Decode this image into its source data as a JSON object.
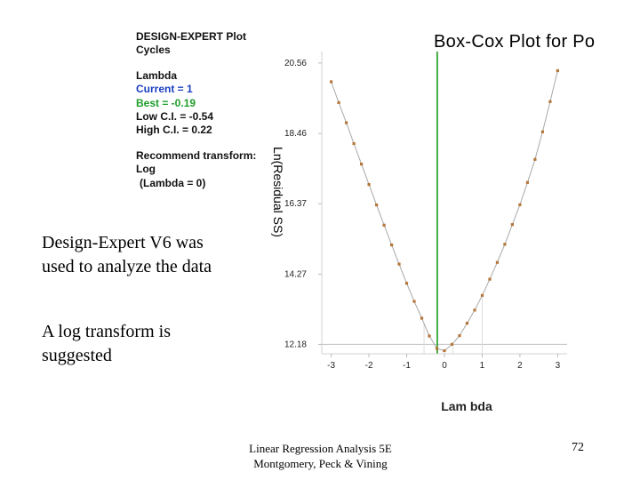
{
  "info_panel": {
    "line1": "DESIGN-EXPERT Plot",
    "line2": "Cycles",
    "lambda_heading": "Lambda",
    "current": "Current = 1",
    "best": "Best = -0.19",
    "low_ci": "Low C.I. = -0.54",
    "high_ci": "High C.I. = 0.22",
    "recommend_heading": "Recommend transform:",
    "recommend_value": "Log",
    "recommend_lambda": "(Lambda = 0)"
  },
  "slide_text": {
    "paragraph1": "Design-Expert V6 was used to analyze the data",
    "paragraph2": "A log transform is suggested"
  },
  "footer": {
    "line1": "Linear Regression Analysis 5E",
    "line2": "Montgomery, Peck & Vining",
    "page_number": "72"
  },
  "chart_data": {
    "type": "line",
    "title": "Box-Cox Plot for Po",
    "xlabel": "Lam bda",
    "ylabel": "Ln(Residual SS)",
    "xlim": [
      -3.25,
      3.25
    ],
    "ylim": [
      11.9,
      20.9
    ],
    "x_ticks": [
      -3,
      -2,
      -1,
      0,
      1,
      2,
      3
    ],
    "y_ticks": [
      12.18,
      14.27,
      16.37,
      18.46,
      20.56
    ],
    "y_tick_labels": [
      "12.18",
      "14.27",
      "16.37",
      "18.46",
      "20.56"
    ],
    "current_lambda": 1,
    "best_lambda": -0.19,
    "low_ci": -0.54,
    "high_ci": 0.22,
    "ci_threshold": 12.18,
    "series": [
      {
        "x": [
          -3.0,
          -2.8,
          -2.6,
          -2.4,
          -2.2,
          -2.0,
          -1.8,
          -1.6,
          -1.4,
          -1.2,
          -1.0,
          -0.8,
          -0.6,
          -0.4,
          -0.2,
          0.0,
          0.2,
          0.4,
          0.6,
          0.8,
          1.0,
          1.2,
          1.4,
          1.6,
          1.8,
          2.0,
          2.2,
          2.4,
          2.6,
          2.8,
          3.0
        ],
        "y": [
          20.0,
          19.38,
          18.78,
          18.16,
          17.55,
          16.94,
          16.33,
          15.73,
          15.14,
          14.57,
          14.0,
          13.46,
          12.96,
          12.43,
          12.06,
          11.99,
          12.18,
          12.44,
          12.81,
          13.2,
          13.64,
          14.12,
          14.62,
          15.16,
          15.75,
          16.34,
          17.0,
          17.69,
          18.51,
          19.41,
          20.33
        ]
      }
    ],
    "grid": false,
    "colors": {
      "curve": "#a8a8a8",
      "points": "#b5763a",
      "best_line": "#1a9a1a",
      "ci_lines": "#c8c8c8"
    }
  }
}
